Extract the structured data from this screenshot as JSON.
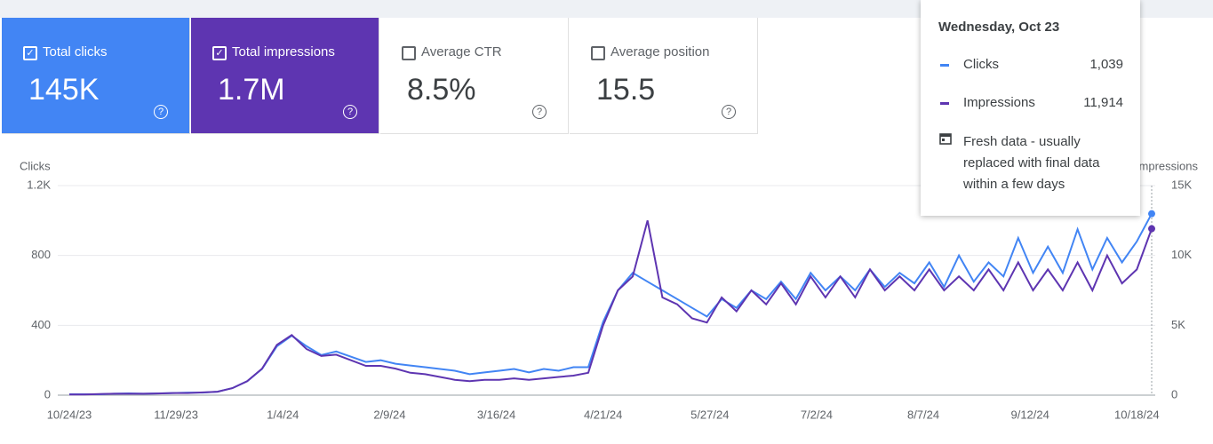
{
  "cards": [
    {
      "label": "Total clicks",
      "value": "145K",
      "checked": true,
      "bg": "#4285f4"
    },
    {
      "label": "Total impressions",
      "value": "1.7M",
      "checked": true,
      "bg": "#5e35b1"
    },
    {
      "label": "Average CTR",
      "value": "8.5%",
      "checked": false,
      "bg": "#ffffff"
    },
    {
      "label": "Average position",
      "value": "15.5",
      "checked": false,
      "bg": "#ffffff"
    }
  ],
  "tooltip": {
    "title": "Wednesday, Oct 23",
    "rows": [
      {
        "name": "Clicks",
        "value": {
          "value": 1039,
          "label": "1,039"
        },
        "color": "#4285f4"
      },
      {
        "name": "Impressions",
        "value": {
          "value": 11914,
          "label": "11,914"
        },
        "color": "#5e35b1"
      }
    ],
    "note": "Fresh data - usually replaced with final data within a few days"
  },
  "chart_data": {
    "type": "line",
    "y_label": "Clicks",
    "y2_label": "Impressions",
    "x": [
      "10/24/23",
      "10/29/23",
      "11/3/23",
      "11/8/23",
      "11/13/23",
      "11/18/23",
      "11/23/23",
      "11/28/23",
      "12/3/23",
      "12/8/23",
      "12/13/23",
      "12/18/23",
      "12/23/23",
      "12/28/23",
      "1/2/24",
      "1/7/24",
      "1/12/24",
      "1/17/24",
      "1/22/24",
      "1/27/24",
      "2/1/24",
      "2/6/24",
      "2/11/24",
      "2/16/24",
      "2/21/24",
      "2/26/24",
      "3/2/24",
      "3/7/24",
      "3/12/24",
      "3/17/24",
      "3/22/24",
      "3/27/24",
      "4/1/24",
      "4/6/24",
      "4/11/24",
      "4/16/24",
      "4/21/24",
      "4/26/24",
      "5/1/24",
      "5/6/24",
      "5/11/24",
      "5/16/24",
      "5/21/24",
      "5/26/24",
      "5/31/24",
      "6/5/24",
      "6/10/24",
      "6/15/24",
      "6/20/24",
      "6/25/24",
      "6/30/24",
      "7/5/24",
      "7/10/24",
      "7/15/24",
      "7/20/24",
      "7/25/24",
      "7/30/24",
      "8/4/24",
      "8/9/24",
      "8/14/24",
      "8/19/24",
      "8/24/24",
      "8/29/24",
      "9/3/24",
      "9/8/24",
      "9/13/24",
      "9/18/24",
      "9/23/24",
      "9/28/24",
      "10/3/24",
      "10/8/24",
      "10/13/24",
      "10/18/24",
      "10/23/24"
    ],
    "xlim": [
      "10/24/23",
      "10/23/24"
    ],
    "xticks": [
      "10/24/23",
      "11/29/23",
      "1/4/24",
      "2/9/24",
      "3/16/24",
      "4/21/24",
      "5/27/24",
      "7/2/24",
      "8/7/24",
      "9/12/24",
      "10/18/24"
    ],
    "ylim": [
      0,
      1200
    ],
    "yticks": [
      0,
      400,
      800,
      {
        "value": 1200,
        "label": "1.2K"
      }
    ],
    "y2lim": [
      0,
      15000
    ],
    "y2ticks": [
      0,
      {
        "value": 5000,
        "label": "5K"
      },
      {
        "value": 10000,
        "label": "10K"
      },
      {
        "value": 15000,
        "label": "15K"
      }
    ],
    "grid": true,
    "series": [
      {
        "name": "Clicks",
        "color": "#4285f4",
        "values": [
          5,
          5,
          5,
          8,
          10,
          8,
          10,
          12,
          15,
          15,
          20,
          40,
          80,
          150,
          280,
          340,
          280,
          230,
          250,
          220,
          190,
          200,
          180,
          170,
          160,
          150,
          140,
          120,
          130,
          140,
          150,
          130,
          150,
          140,
          160,
          160,
          420,
          600,
          700,
          650,
          600,
          550,
          500,
          450,
          550,
          500,
          600,
          550,
          650,
          550,
          700,
          600,
          680,
          600,
          720,
          620,
          700,
          640,
          760,
          620,
          800,
          650,
          760,
          680,
          900,
          700,
          850,
          700,
          950,
          720,
          900,
          760,
          880,
          1039
        ]
      },
      {
        "name": "Impressions",
        "color": "#5e35b1",
        "axis": "y2",
        "values": [
          50,
          50,
          80,
          100,
          100,
          100,
          120,
          150,
          150,
          200,
          250,
          500,
          1000,
          1900,
          3600,
          4300,
          3300,
          2800,
          2900,
          2500,
          2100,
          2100,
          1900,
          1600,
          1500,
          1300,
          1100,
          1000,
          1100,
          1100,
          1200,
          1100,
          1200,
          1300,
          1400,
          1600,
          5000,
          7500,
          8500,
          12500,
          7000,
          6500,
          5500,
          5200,
          7000,
          6000,
          7500,
          6500,
          8000,
          6500,
          8500,
          7000,
          8500,
          7000,
          9000,
          7500,
          8500,
          7500,
          9000,
          7500,
          8500,
          7500,
          9000,
          7500,
          9500,
          7500,
          9000,
          7500,
          9500,
          7500,
          10000,
          8000,
          9000,
          11914
        ]
      }
    ]
  }
}
